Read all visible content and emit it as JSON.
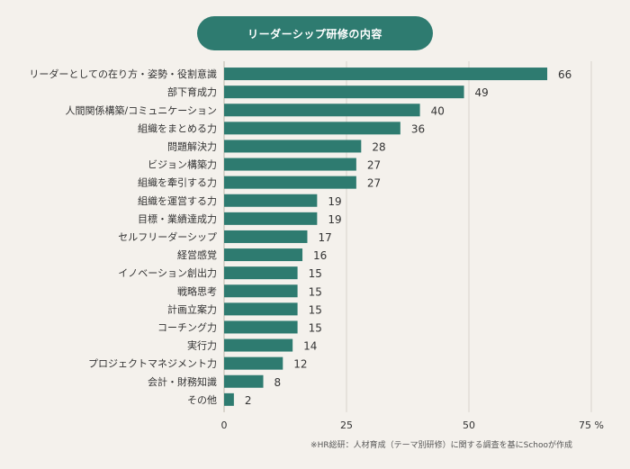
{
  "title": "リーダーシップ研修の内容",
  "source_note": "※HR総研：人材育成（テーマ別研修）に関する調査を基にSchooが作成",
  "colors": {
    "bar": "#2e7b70",
    "title_bg": "#2e7b70",
    "grid": "#d9d4cc",
    "text": "#333333"
  },
  "chart_data": {
    "type": "bar",
    "orientation": "horizontal",
    "title": "リーダーシップ研修の内容",
    "categories": [
      "リーダーとしての在り方・姿勢・役割意識",
      "部下育成力",
      "人間関係構築/コミュニケーション",
      "組織をまとめる力",
      "問題解決力",
      "ビジョン構築力",
      "組織を牽引する力",
      "組織を運営する力",
      "目標・業績達成力",
      "セルフリーダーシップ",
      "経営感覚",
      "イノベーション創出力",
      "戦略思考",
      "計画立案力",
      "コーチング力",
      "実行力",
      "プロジェクトマネジメント力",
      "会計・財務知識",
      "その他"
    ],
    "values": [
      66,
      49,
      40,
      36,
      28,
      27,
      27,
      19,
      19,
      17,
      16,
      15,
      15,
      15,
      15,
      14,
      12,
      8,
      2
    ],
    "xlim": [
      0,
      75
    ],
    "xticks": [
      "0",
      "25",
      "50",
      "75 %"
    ],
    "grid": true
  }
}
